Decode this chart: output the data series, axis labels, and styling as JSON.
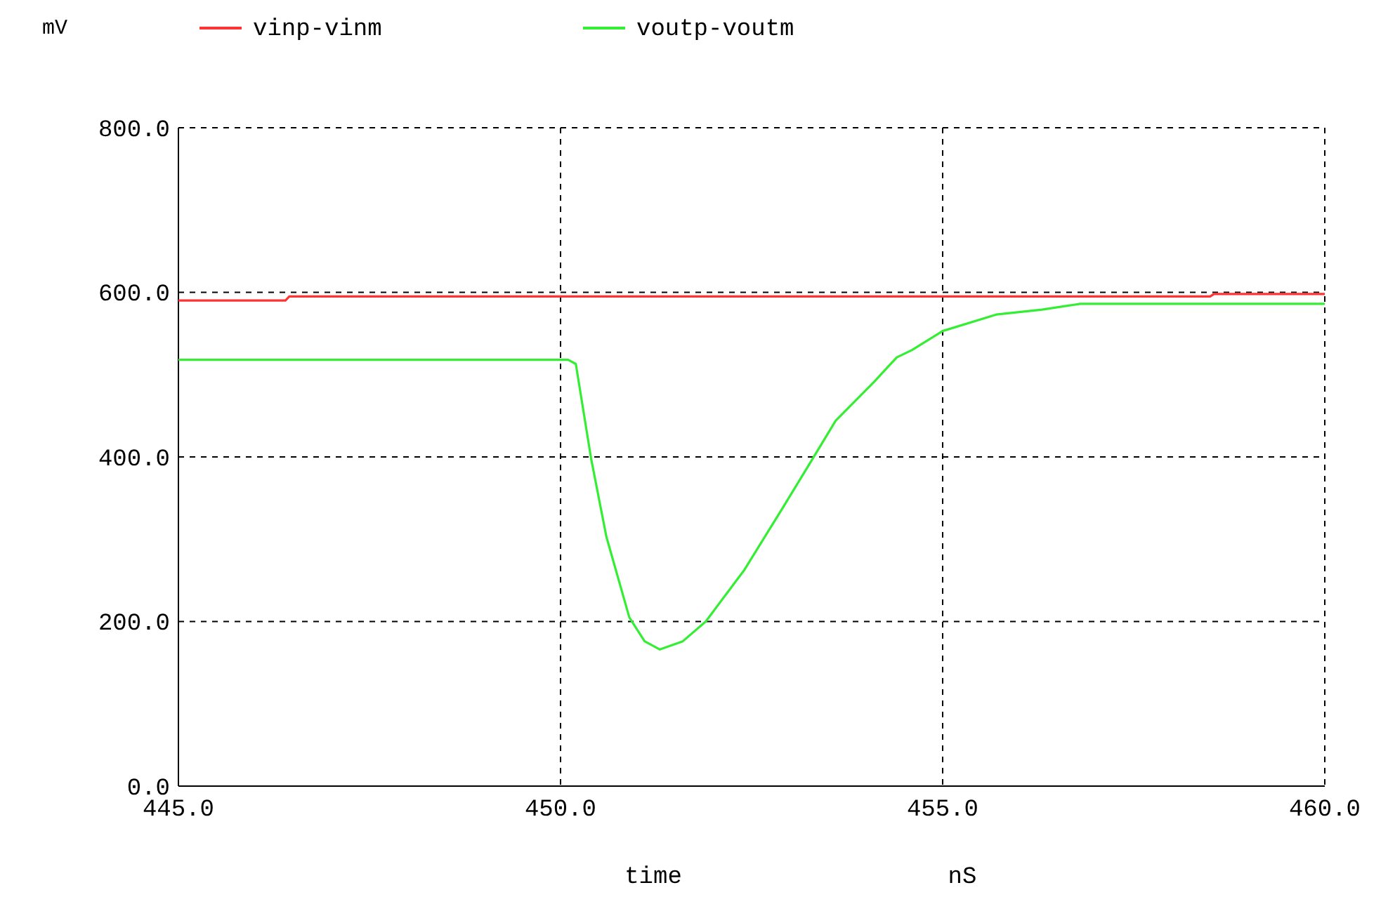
{
  "chart_data": {
    "type": "line",
    "xlabel": "time",
    "ylabel": "mV",
    "annotations": [
      "nS"
    ],
    "xlim": [
      445,
      460
    ],
    "ylim": [
      0,
      800
    ],
    "xticks": [
      {
        "value": 445,
        "label": "445.0"
      },
      {
        "value": 450,
        "label": "450.0"
      },
      {
        "value": 455,
        "label": "455.0"
      },
      {
        "value": 460,
        "label": "460.0"
      }
    ],
    "yticks": [
      {
        "value": 0,
        "label": "0.0"
      },
      {
        "value": 200,
        "label": "200.0"
      },
      {
        "value": 400,
        "label": "400.0"
      },
      {
        "value": 600,
        "label": "600.0"
      },
      {
        "value": 800,
        "label": "800.0"
      }
    ],
    "grid": true,
    "legend": "top left",
    "marker": "none",
    "line_style": "solid",
    "series": [
      {
        "name": "vinp-vinm",
        "color": "#ff3333",
        "x": [
          445,
          446.4,
          446.45,
          458.5,
          458.55,
          460
        ],
        "values": [
          590,
          590,
          595,
          595,
          598,
          598
        ]
      },
      {
        "name": "voutp-voutm",
        "color": "#33ee33",
        "x": [
          445,
          450.1,
          450.2,
          450.4,
          450.6,
          450.9,
          451.1,
          451.3,
          451.6,
          451.9,
          452.4,
          452.9,
          453.3,
          453.6,
          454.1,
          454.4,
          454.6,
          455.0,
          455.7,
          456.3,
          456.8,
          460
        ],
        "values": [
          518,
          518,
          513,
          398,
          303,
          205,
          176,
          166,
          176,
          200,
          262,
          337,
          398,
          444,
          491,
          521,
          530,
          553,
          573,
          579,
          586,
          586
        ]
      }
    ]
  }
}
